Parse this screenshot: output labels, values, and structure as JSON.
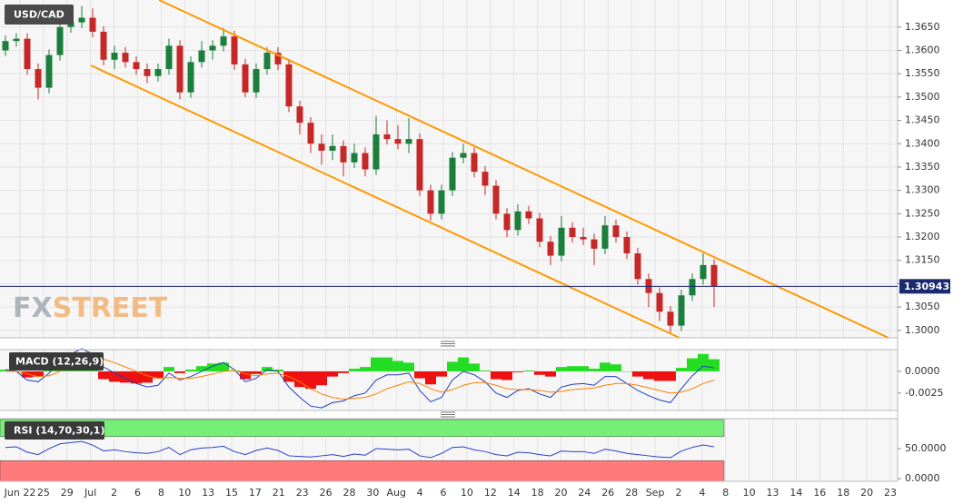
{
  "chart_data": [
    {
      "type": "candlestick",
      "title": "USD/CAD",
      "watermark": [
        "FX",
        "STREET"
      ],
      "up_color": "#1b7f3b",
      "down_color": "#c62828",
      "candles": [
        [
          1.36,
          1.3632,
          1.3588,
          1.362
        ],
        [
          1.362,
          1.3637,
          1.3608,
          1.3625
        ],
        [
          1.3625,
          1.3637,
          1.3548,
          1.356
        ],
        [
          1.356,
          1.3572,
          1.3495,
          1.352
        ],
        [
          1.352,
          1.3602,
          1.3508,
          1.359
        ],
        [
          1.359,
          1.3662,
          1.3578,
          1.365
        ],
        [
          1.365,
          1.368,
          1.3638,
          1.366
        ],
        [
          1.366,
          1.3695,
          1.3648,
          1.367
        ],
        [
          1.367,
          1.369,
          1.3628,
          1.364
        ],
        [
          1.364,
          1.3652,
          1.3568,
          1.358
        ],
        [
          1.358,
          1.361,
          1.356,
          1.3595
        ],
        [
          1.3595,
          1.3607,
          1.3563,
          1.3575
        ],
        [
          1.3575,
          1.3587,
          1.3548,
          1.356
        ],
        [
          1.356,
          1.3572,
          1.353,
          1.3545
        ],
        [
          1.3545,
          1.3572,
          1.3533,
          1.356
        ],
        [
          1.356,
          1.3625,
          1.3548,
          1.361
        ],
        [
          1.361,
          1.3622,
          1.3495,
          1.351
        ],
        [
          1.351,
          1.3587,
          1.3498,
          1.3575
        ],
        [
          1.3575,
          1.362,
          1.3563,
          1.36
        ],
        [
          1.36,
          1.3622,
          1.358,
          1.361
        ],
        [
          1.361,
          1.3648,
          1.3598,
          1.363
        ],
        [
          1.363,
          1.3642,
          1.3558,
          1.357
        ],
        [
          1.357,
          1.3582,
          1.35,
          1.351
        ],
        [
          1.351,
          1.3572,
          1.3498,
          1.356
        ],
        [
          1.356,
          1.3607,
          1.3548,
          1.3595
        ],
        [
          1.3595,
          1.3607,
          1.3558,
          1.357
        ],
        [
          1.357,
          1.3582,
          1.3468,
          1.348
        ],
        [
          1.348,
          1.3492,
          1.342,
          1.3445
        ],
        [
          1.3445,
          1.3457,
          1.338,
          1.34
        ],
        [
          1.34,
          1.342,
          1.3355,
          1.3385
        ],
        [
          1.3385,
          1.342,
          1.3365,
          1.3395
        ],
        [
          1.3395,
          1.3407,
          1.333,
          1.336
        ],
        [
          1.336,
          1.34,
          1.3348,
          1.338
        ],
        [
          1.338,
          1.3392,
          1.333,
          1.3345
        ],
        [
          1.3345,
          1.346,
          1.3333,
          1.342
        ],
        [
          1.342,
          1.345,
          1.3398,
          1.341
        ],
        [
          1.341,
          1.344,
          1.3388,
          1.34
        ],
        [
          1.34,
          1.3455,
          1.338,
          1.341
        ],
        [
          1.341,
          1.3422,
          1.3288,
          1.33
        ],
        [
          1.33,
          1.3312,
          1.3235,
          1.325
        ],
        [
          1.325,
          1.3312,
          1.3238,
          1.33
        ],
        [
          1.33,
          1.3382,
          1.3288,
          1.337
        ],
        [
          1.337,
          1.34,
          1.3358,
          1.338
        ],
        [
          1.338,
          1.3392,
          1.3328,
          1.334
        ],
        [
          1.334,
          1.3352,
          1.329,
          1.331
        ],
        [
          1.331,
          1.3322,
          1.3238,
          1.325
        ],
        [
          1.325,
          1.3262,
          1.32,
          1.3215
        ],
        [
          1.3215,
          1.327,
          1.3203,
          1.3255
        ],
        [
          1.3255,
          1.3267,
          1.3228,
          1.324
        ],
        [
          1.324,
          1.3252,
          1.3178,
          1.319
        ],
        [
          1.319,
          1.3202,
          1.314,
          1.316
        ],
        [
          1.316,
          1.3245,
          1.3148,
          1.322
        ],
        [
          1.322,
          1.3232,
          1.3188,
          1.32
        ],
        [
          1.32,
          1.322,
          1.3183,
          1.3195
        ],
        [
          1.3195,
          1.3207,
          1.314,
          1.3175
        ],
        [
          1.3175,
          1.3245,
          1.3163,
          1.3225
        ],
        [
          1.3225,
          1.3237,
          1.3188,
          1.32
        ],
        [
          1.32,
          1.3212,
          1.3153,
          1.3165
        ],
        [
          1.3165,
          1.3177,
          1.3098,
          1.311
        ],
        [
          1.311,
          1.3122,
          1.305,
          1.308
        ],
        [
          1.308,
          1.3092,
          1.302,
          1.304
        ],
        [
          1.304,
          1.3052,
          1.2995,
          1.301
        ],
        [
          1.301,
          1.3087,
          1.2998,
          1.3075
        ],
        [
          1.3075,
          1.3122,
          1.3063,
          1.311
        ],
        [
          1.311,
          1.3165,
          1.3098,
          1.314
        ],
        [
          1.314,
          1.3152,
          1.305,
          1.3094
        ]
      ],
      "last_price": 1.30943,
      "ylim": [
        1.2984,
        1.3708
      ],
      "yticks": [
        {
          "value": 1.3,
          "label": "1.3000"
        },
        {
          "value": 1.305,
          "label": "1.3050"
        },
        {
          "value": 1.31,
          "label": "1.3100"
        },
        {
          "value": 1.315,
          "label": "1.3150"
        },
        {
          "value": 1.32,
          "label": "1.3200"
        },
        {
          "value": 1.325,
          "label": "1.3250"
        },
        {
          "value": 1.33,
          "label": "1.3300"
        },
        {
          "value": 1.335,
          "label": "1.3350"
        },
        {
          "value": 1.34,
          "label": "1.3400"
        },
        {
          "value": 1.345,
          "label": "1.3450"
        },
        {
          "value": 1.35,
          "label": "1.3500"
        },
        {
          "value": 1.355,
          "label": "1.3550"
        },
        {
          "value": 1.36,
          "label": "1.3600"
        },
        {
          "value": 1.365,
          "label": "1.3650"
        }
      ],
      "x_labels": [
        "Jun 22",
        "25",
        "29",
        "Jul",
        "2",
        "6",
        "8",
        "10",
        "13",
        "15",
        "17",
        "21",
        "23",
        "26",
        "28",
        "30",
        "Aug",
        "4",
        "6",
        "10",
        "12",
        "14",
        "18",
        "20",
        "24",
        "26",
        "28",
        "Sep",
        "2",
        "4",
        "8",
        "10",
        "13",
        "14",
        "16",
        "18",
        "20",
        "23"
      ],
      "grid": true
    },
    {
      "type": "macd",
      "title": "MACD (12,26,9)",
      "series": [
        {
          "name": "MACD",
          "color": "#1f3fbf",
          "values": [
            0.0002,
            0.0,
            -0.001,
            -0.0012,
            -0.0002,
            0.0012,
            0.002,
            0.0026,
            0.002,
            0.0005,
            -0.0002,
            -0.0008,
            -0.0014,
            -0.0018,
            -0.0016,
            -0.0002,
            -0.001,
            -0.0006,
            0.0,
            0.0006,
            0.001,
            0.0002,
            -0.0012,
            -0.0008,
            0.0002,
            0.0,
            -0.0018,
            -0.003,
            -0.004,
            -0.0042,
            -0.0036,
            -0.0034,
            -0.0028,
            -0.0025,
            -0.001,
            -0.0004,
            -0.0004,
            -0.0002,
            -0.0022,
            -0.0035,
            -0.003,
            -0.001,
            0.0,
            -0.0004,
            -0.0012,
            -0.0025,
            -0.003,
            -0.0022,
            -0.002,
            -0.0026,
            -0.003,
            -0.0018,
            -0.0015,
            -0.0014,
            -0.0016,
            -0.0006,
            -0.0006,
            -0.0014,
            -0.0022,
            -0.0028,
            -0.0033,
            -0.0036,
            -0.002,
            -0.0005,
            0.0006,
            0.0004
          ]
        },
        {
          "name": "Signal",
          "color": "#ff7f00",
          "values": [
            0.0,
            0.0,
            -0.0003,
            -0.0006,
            -0.0005,
            0.0,
            0.0006,
            0.0012,
            0.0016,
            0.0014,
            0.001,
            0.0005,
            0.0,
            -0.0005,
            -0.0008,
            -0.0007,
            -0.0008,
            -0.0008,
            -0.0006,
            -0.0003,
            0.0,
            0.0001,
            -0.0003,
            -0.0005,
            -0.0003,
            -0.0002,
            -0.0006,
            -0.0012,
            -0.002,
            -0.0026,
            -0.003,
            -0.0032,
            -0.0031,
            -0.003,
            -0.0026,
            -0.002,
            -0.0016,
            -0.0012,
            -0.0014,
            -0.002,
            -0.0024,
            -0.0021,
            -0.0016,
            -0.0013,
            -0.0013,
            -0.0016,
            -0.002,
            -0.0021,
            -0.0021,
            -0.0022,
            -0.0024,
            -0.0023,
            -0.0021,
            -0.002,
            -0.0019,
            -0.0016,
            -0.0014,
            -0.0014,
            -0.0016,
            -0.0019,
            -0.0022,
            -0.0025,
            -0.0024,
            -0.002,
            -0.0014,
            -0.001
          ]
        }
      ],
      "histogram": [
        0.0002,
        0.0,
        -0.0007,
        -0.0006,
        0.0003,
        0.0012,
        0.0014,
        0.0014,
        0.0004,
        -0.0009,
        -0.0012,
        -0.0013,
        -0.0014,
        -0.0013,
        -0.0008,
        0.0005,
        -0.0002,
        0.0002,
        0.0006,
        0.0009,
        0.001,
        0.0001,
        -0.0009,
        -0.0003,
        0.0005,
        0.0002,
        -0.0012,
        -0.0018,
        -0.002,
        -0.0016,
        -0.0006,
        -0.0002,
        0.0003,
        0.0005,
        0.0016,
        0.0016,
        0.0012,
        0.001,
        -0.0008,
        -0.0015,
        -0.0006,
        0.0011,
        0.0016,
        0.0009,
        0.0001,
        -0.0009,
        -0.001,
        -0.0001,
        0.0001,
        -0.0004,
        -0.0006,
        0.0005,
        0.0006,
        0.0006,
        0.0003,
        0.001,
        0.0008,
        0.0,
        -0.0006,
        -0.0009,
        -0.0011,
        -0.0011,
        0.0004,
        0.0015,
        0.002,
        0.0014
      ],
      "positive_color": "#22dd22",
      "negative_color": "#ee1111",
      "ylim": [
        -0.0045,
        0.0025
      ],
      "yticks": [
        {
          "value": 0,
          "label": "0.0000"
        },
        {
          "value": -0.0025,
          "label": "-0.0025"
        }
      ]
    },
    {
      "type": "rsi",
      "title": "RSI (14,70,30,1)",
      "color": "#2840c8",
      "overbought": 70,
      "oversold": 30,
      "overbought_color": "#77ee77",
      "oversold_color": "#ff7b7b",
      "values": [
        52,
        53,
        44,
        40,
        50,
        58,
        60,
        62,
        56,
        46,
        48,
        45,
        43,
        42,
        45,
        52,
        40,
        48,
        51,
        52,
        54,
        45,
        40,
        47,
        51,
        47,
        38,
        37,
        36,
        38,
        40,
        37,
        41,
        39,
        50,
        49,
        48,
        49,
        38,
        35,
        42,
        52,
        53,
        48,
        45,
        40,
        38,
        44,
        43,
        40,
        38,
        46,
        45,
        45,
        42,
        49,
        46,
        42,
        40,
        38,
        36,
        35,
        46,
        52,
        56,
        53
      ],
      "ylim": [
        -4.5,
        100
      ],
      "yticks": [
        {
          "value": 50,
          "label": "50.0000"
        },
        {
          "value": 0,
          "label": "0.0000"
        }
      ]
    }
  ]
}
